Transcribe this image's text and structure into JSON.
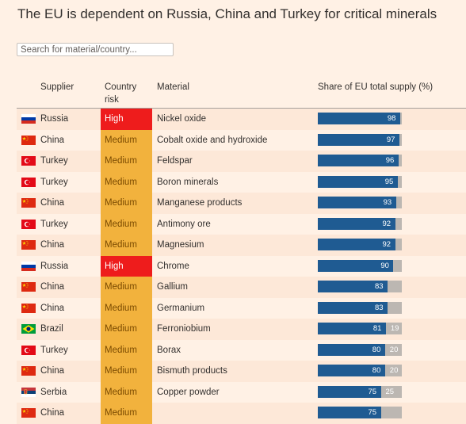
{
  "title": "The EU is dependent on Russia, China and Turkey for critical minerals",
  "search": {
    "placeholder": "Search for material/country..."
  },
  "columns": {
    "supplier": "Supplier",
    "country_risk_line1": "Country",
    "country_risk_line2": "risk",
    "material": "Material",
    "share": "Share of EU total supply (%)"
  },
  "colors": {
    "high": "#ee1c1c",
    "medium": "#f2b23d",
    "share_bar": "#1f5b92",
    "remainder_bar": "#bcb7b2"
  },
  "chart_data": {
    "type": "table",
    "title": "The EU is dependent on Russia, China and Turkey for critical minerals",
    "value_label": "Share of EU total supply (%)",
    "xlim": [
      0,
      100
    ],
    "rows": [
      {
        "supplier": "Russia",
        "flag": "russia-flag",
        "risk": "High",
        "material": "Nickel oxide",
        "share": 98
      },
      {
        "supplier": "China",
        "flag": "china-flag",
        "risk": "Medium",
        "material": "Cobalt oxide and hydroxide",
        "share": 97
      },
      {
        "supplier": "Turkey",
        "flag": "turkey-flag",
        "risk": "Medium",
        "material": "Feldspar",
        "share": 96
      },
      {
        "supplier": "Turkey",
        "flag": "turkey-flag",
        "risk": "Medium",
        "material": "Boron minerals",
        "share": 95
      },
      {
        "supplier": "China",
        "flag": "china-flag",
        "risk": "Medium",
        "material": "Manganese products",
        "share": 93
      },
      {
        "supplier": "Turkey",
        "flag": "turkey-flag",
        "risk": "Medium",
        "material": "Antimony ore",
        "share": 92
      },
      {
        "supplier": "China",
        "flag": "china-flag",
        "risk": "Medium",
        "material": "Magnesium",
        "share": 92
      },
      {
        "supplier": "Russia",
        "flag": "russia-flag",
        "risk": "High",
        "material": "Chrome",
        "share": 90
      },
      {
        "supplier": "China",
        "flag": "china-flag",
        "risk": "Medium",
        "material": "Gallium",
        "share": 83
      },
      {
        "supplier": "China",
        "flag": "china-flag",
        "risk": "Medium",
        "material": "Germanium",
        "share": 83
      },
      {
        "supplier": "Brazil",
        "flag": "brazil-flag",
        "risk": "Medium",
        "material": "Ferroniobium",
        "share": 81,
        "remainder": 19
      },
      {
        "supplier": "Turkey",
        "flag": "turkey-flag",
        "risk": "Medium",
        "material": "Borax",
        "share": 80,
        "remainder": 20
      },
      {
        "supplier": "China",
        "flag": "china-flag",
        "risk": "Medium",
        "material": "Bismuth products",
        "share": 80,
        "remainder": 20
      },
      {
        "supplier": "Serbia",
        "flag": "serbia-flag",
        "risk": "Medium",
        "material": "Copper powder",
        "share": 75,
        "remainder": 25
      },
      {
        "supplier": "China",
        "flag": "china-flag",
        "risk": "Medium",
        "material": "",
        "share": 75
      }
    ]
  }
}
